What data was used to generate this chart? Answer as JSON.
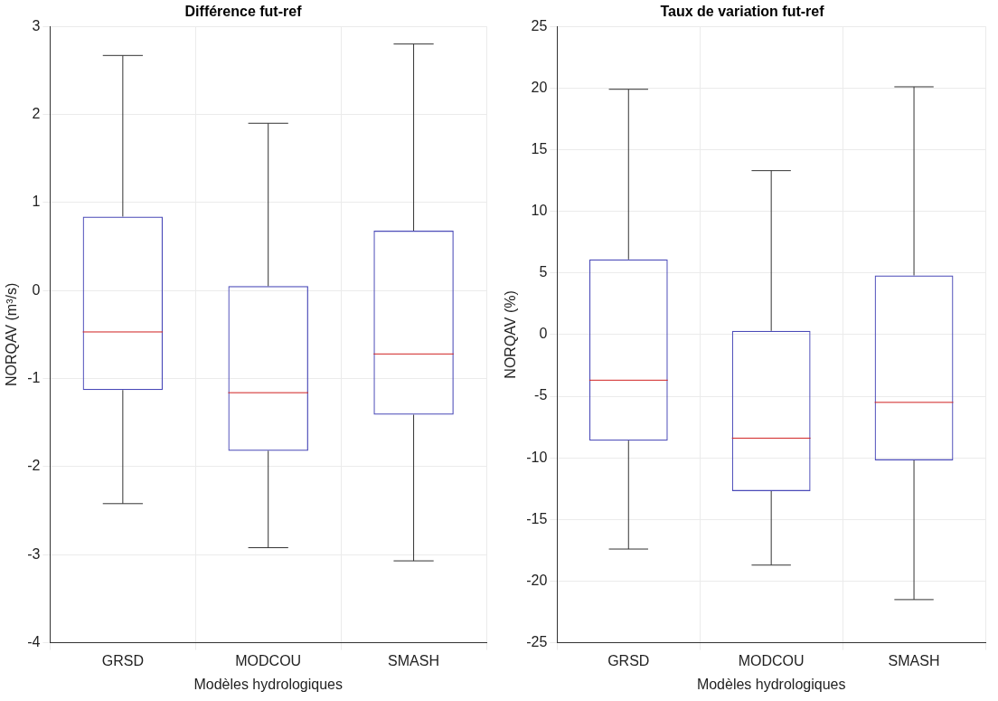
{
  "chart_data": [
    {
      "type": "box",
      "title": "Différence fut-ref",
      "xlabel": "Modèles hydrologiques",
      "ylabel": "NORQAV (m³/s)",
      "categories": [
        "GRSD",
        "MODCOU",
        "SMASH"
      ],
      "ylim": [
        -4,
        3
      ],
      "yticks": [
        -4,
        -3,
        -2,
        -1,
        0,
        1,
        2,
        3
      ],
      "grid": true,
      "series": [
        {
          "color": "#4a4ab8",
          "boxes": [
            {
              "low": -2.42,
              "q1": -1.13,
              "median": -0.47,
              "q3": 0.84,
              "high": 2.67
            },
            {
              "low": -2.92,
              "q1": -1.82,
              "median": -1.16,
              "q3": 0.05,
              "high": 1.9
            },
            {
              "low": -3.07,
              "q1": -1.41,
              "median": -0.72,
              "q3": 0.68,
              "high": 2.8
            }
          ]
        }
      ]
    },
    {
      "type": "box",
      "title": "Taux de variation fut-ref",
      "xlabel": "Modèles hydrologiques",
      "ylabel": "NORQAV (%)",
      "categories": [
        "GRSD",
        "MODCOU",
        "SMASH"
      ],
      "ylim": [
        -25,
        25
      ],
      "yticks": [
        -25,
        -20,
        -15,
        -10,
        -5,
        0,
        5,
        10,
        15,
        20,
        25
      ],
      "grid": true,
      "series": [
        {
          "color": "#4a4ab8",
          "boxes": [
            {
              "low": -17.4,
              "q1": -8.6,
              "median": -3.7,
              "q3": 6.1,
              "high": 19.9
            },
            {
              "low": -18.7,
              "q1": -12.7,
              "median": -8.4,
              "q3": 0.3,
              "high": 13.3
            },
            {
              "low": -21.5,
              "q1": -10.2,
              "median": -5.5,
              "q3": 4.8,
              "high": 20.1
            }
          ]
        }
      ]
    }
  ]
}
